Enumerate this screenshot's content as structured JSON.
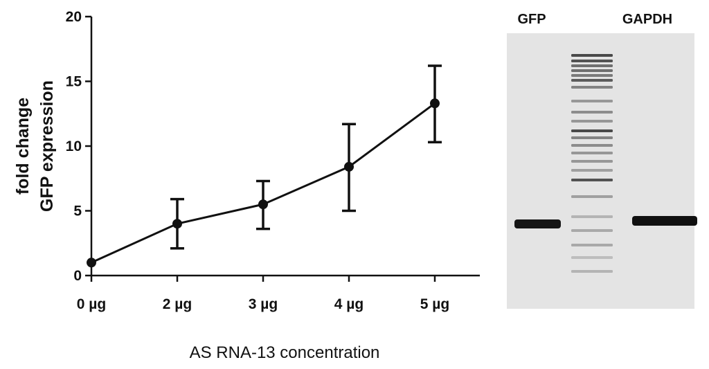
{
  "chart_data": {
    "type": "line",
    "categories": [
      "0 µg",
      "2 µg",
      "3 µg",
      "4 µg",
      "5 µg"
    ],
    "values": [
      1.0,
      4.0,
      5.5,
      8.4,
      13.3
    ],
    "error_upper": [
      1.0,
      5.9,
      7.3,
      11.7,
      16.2
    ],
    "error_lower": [
      1.0,
      2.1,
      3.6,
      5.0,
      10.3
    ],
    "xlabel": "AS RNA-13 concentration",
    "ylabel_lines": [
      "fold change",
      "GFP expression"
    ],
    "ylim": [
      0,
      20
    ],
    "yticks": [
      0,
      5,
      10,
      15,
      20
    ],
    "grid": false
  },
  "gel": {
    "lane_labels": [
      "GFP",
      "GAPDH"
    ]
  },
  "colors": {
    "line": "#111111",
    "gel_background": "#e4e4e4",
    "band": "#111111"
  }
}
